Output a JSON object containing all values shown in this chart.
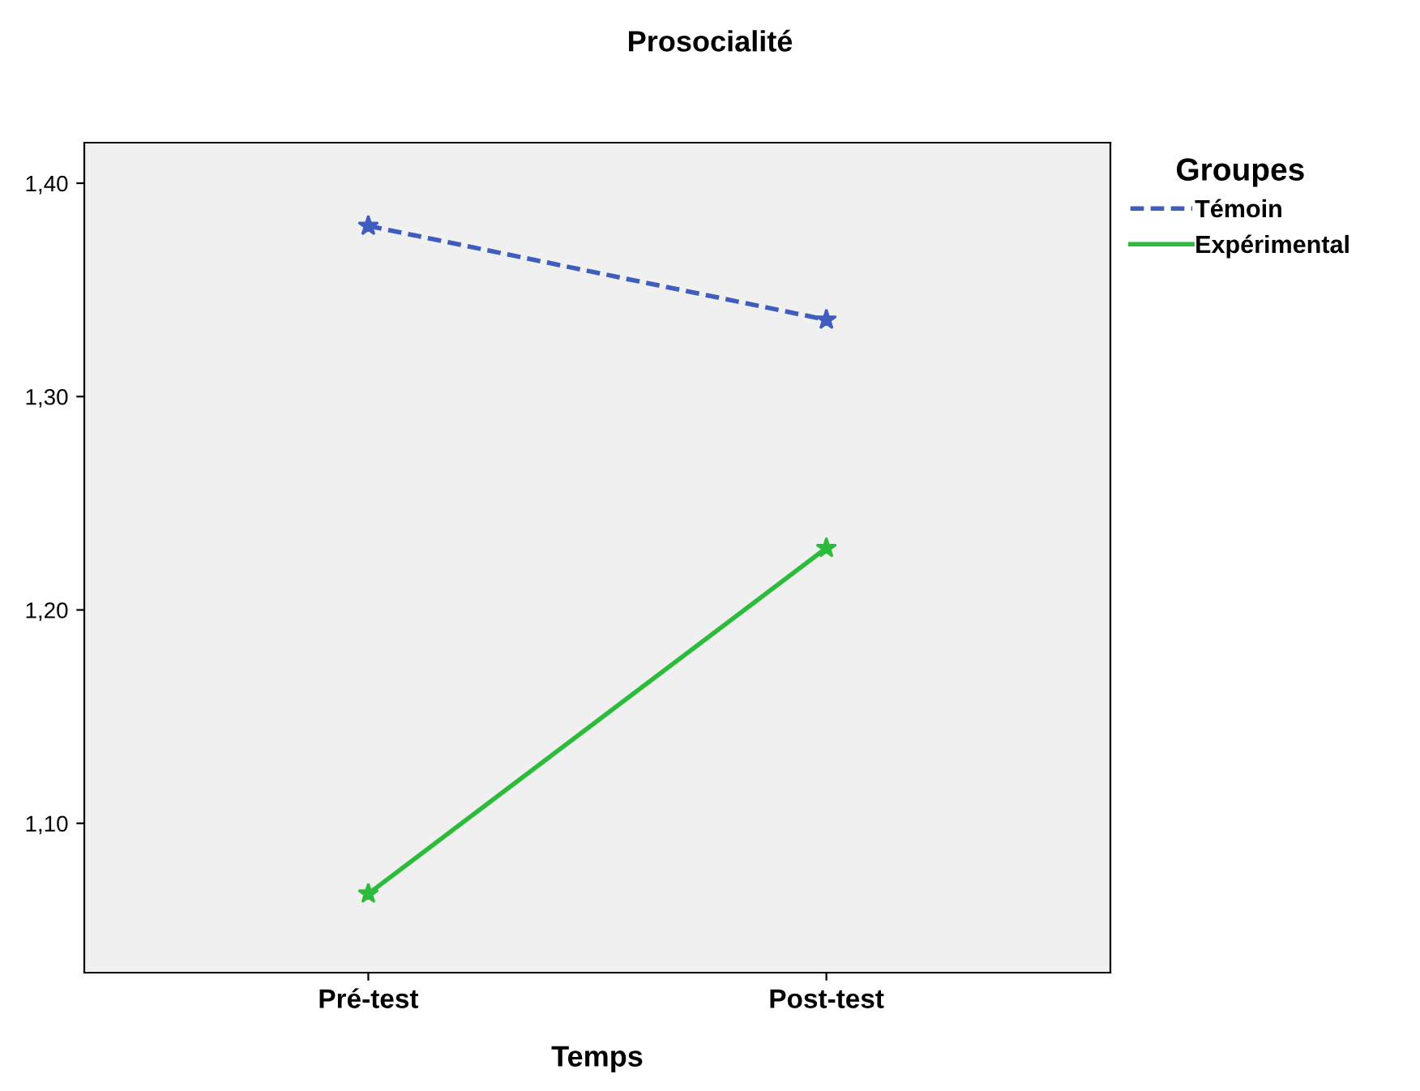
{
  "chart_data": {
    "type": "line",
    "title": "Prosocialité",
    "xlabel": "Temps",
    "legend_title": "Groupes",
    "categories": [
      "Pré-test",
      "Post-test"
    ],
    "series": [
      {
        "name": "Témoin",
        "color": "#3f5cbf",
        "values": [
          1.38,
          1.336
        ],
        "line_style": "dashed"
      },
      {
        "name": "Expérimental",
        "color": "#2dbb3c",
        "values": [
          1.067,
          1.229
        ],
        "line_style": "solid"
      }
    ],
    "ylim": [
      1.03,
      1.419
    ],
    "yticks": [
      {
        "value": 1.1,
        "label": "1,10"
      },
      {
        "value": 1.2,
        "label": "1,20"
      },
      {
        "value": 1.3,
        "label": "1,30"
      },
      {
        "value": 1.4,
        "label": "1,40"
      }
    ],
    "marker": "star",
    "grid": false,
    "legend": "top right"
  }
}
